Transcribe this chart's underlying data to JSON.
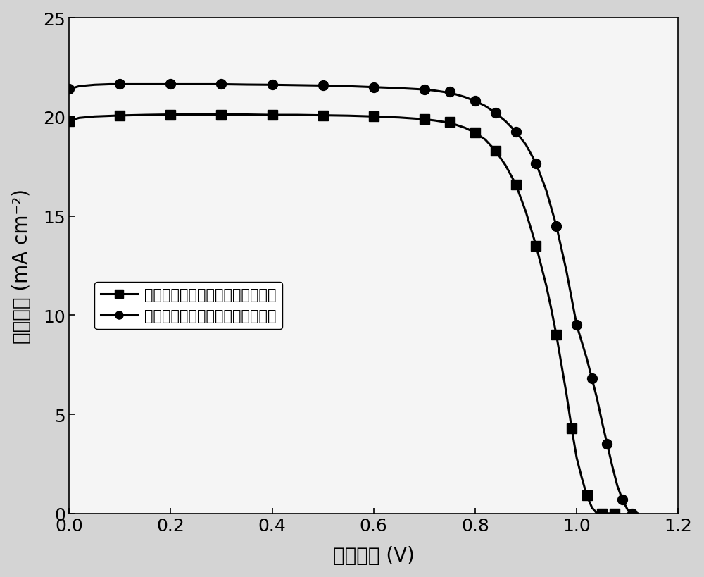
{
  "xlabel": "开路电压 (V)",
  "ylabel": "电流密度 (mA cm⁻²)",
  "xlim": [
    0.0,
    1.2
  ],
  "ylim": [
    0.0,
    25
  ],
  "xticks": [
    0.0,
    0.2,
    0.4,
    0.6,
    0.8,
    1.0,
    1.2
  ],
  "yticks": [
    0,
    5,
    10,
    15,
    20,
    25
  ],
  "legend1": "单一电负性金属氧化物电子传输层",
  "legend2": "复合电负性金属氧化物电子传输层",
  "line_color": "#000000",
  "background_color": "#d4d4d4",
  "plot_bg_color": "#f5f5f5",
  "curve1_x": [
    0.0,
    0.02,
    0.05,
    0.08,
    0.1,
    0.15,
    0.2,
    0.25,
    0.3,
    0.35,
    0.4,
    0.45,
    0.5,
    0.55,
    0.6,
    0.65,
    0.7,
    0.72,
    0.74,
    0.76,
    0.78,
    0.8,
    0.82,
    0.84,
    0.86,
    0.88,
    0.9,
    0.92,
    0.94,
    0.95,
    0.96,
    0.97,
    0.98,
    0.99,
    1.0,
    1.01,
    1.02,
    1.03,
    1.04,
    1.05,
    1.06,
    1.07,
    1.075,
    1.08
  ],
  "curve1_y": [
    19.8,
    19.95,
    20.02,
    20.05,
    20.07,
    20.1,
    20.12,
    20.12,
    20.12,
    20.12,
    20.1,
    20.1,
    20.08,
    20.06,
    20.02,
    19.97,
    19.88,
    19.82,
    19.74,
    19.62,
    19.45,
    19.2,
    18.85,
    18.3,
    17.55,
    16.6,
    15.2,
    13.5,
    11.5,
    10.3,
    9.0,
    7.5,
    6.0,
    4.3,
    2.8,
    1.8,
    0.9,
    0.3,
    0.0,
    0.0,
    0.0,
    0.0,
    0.0,
    0.0
  ],
  "curve2_x": [
    0.0,
    0.02,
    0.05,
    0.08,
    0.1,
    0.15,
    0.2,
    0.25,
    0.3,
    0.35,
    0.4,
    0.45,
    0.5,
    0.55,
    0.6,
    0.65,
    0.7,
    0.72,
    0.74,
    0.76,
    0.78,
    0.8,
    0.82,
    0.84,
    0.86,
    0.88,
    0.9,
    0.92,
    0.94,
    0.96,
    0.98,
    1.0,
    1.02,
    1.03,
    1.04,
    1.05,
    1.06,
    1.07,
    1.08,
    1.09,
    1.1,
    1.11,
    1.12
  ],
  "curve2_y": [
    21.4,
    21.55,
    21.62,
    21.65,
    21.65,
    21.65,
    21.65,
    21.65,
    21.65,
    21.63,
    21.62,
    21.6,
    21.58,
    21.55,
    21.5,
    21.45,
    21.38,
    21.33,
    21.25,
    21.15,
    21.0,
    20.8,
    20.55,
    20.2,
    19.78,
    19.25,
    18.6,
    17.65,
    16.3,
    14.5,
    12.2,
    9.5,
    7.8,
    6.8,
    5.8,
    4.6,
    3.5,
    2.4,
    1.4,
    0.7,
    0.2,
    0.0,
    0.0
  ],
  "marker1_x": [
    0.0,
    0.1,
    0.2,
    0.3,
    0.4,
    0.5,
    0.6,
    0.7,
    0.75,
    0.8,
    0.84,
    0.88,
    0.92,
    0.96,
    0.99,
    1.02,
    1.05,
    1.075
  ],
  "marker1_y": [
    19.8,
    20.07,
    20.12,
    20.12,
    20.1,
    20.08,
    20.02,
    19.88,
    19.75,
    19.2,
    18.3,
    16.6,
    13.5,
    9.0,
    4.3,
    0.9,
    0.0,
    0.0
  ],
  "marker2_x": [
    0.0,
    0.1,
    0.2,
    0.3,
    0.4,
    0.5,
    0.6,
    0.7,
    0.75,
    0.8,
    0.84,
    0.88,
    0.92,
    0.96,
    1.0,
    1.03,
    1.06,
    1.09,
    1.11
  ],
  "marker2_y": [
    21.4,
    21.65,
    21.65,
    21.65,
    21.62,
    21.58,
    21.5,
    21.38,
    21.28,
    20.8,
    20.2,
    19.25,
    17.65,
    14.5,
    9.5,
    6.8,
    3.5,
    0.7,
    0.0
  ],
  "xlabel_fontsize": 20,
  "ylabel_fontsize": 20,
  "tick_fontsize": 18,
  "legend_fontsize": 15,
  "marker_size": 10,
  "line_width": 2.2
}
